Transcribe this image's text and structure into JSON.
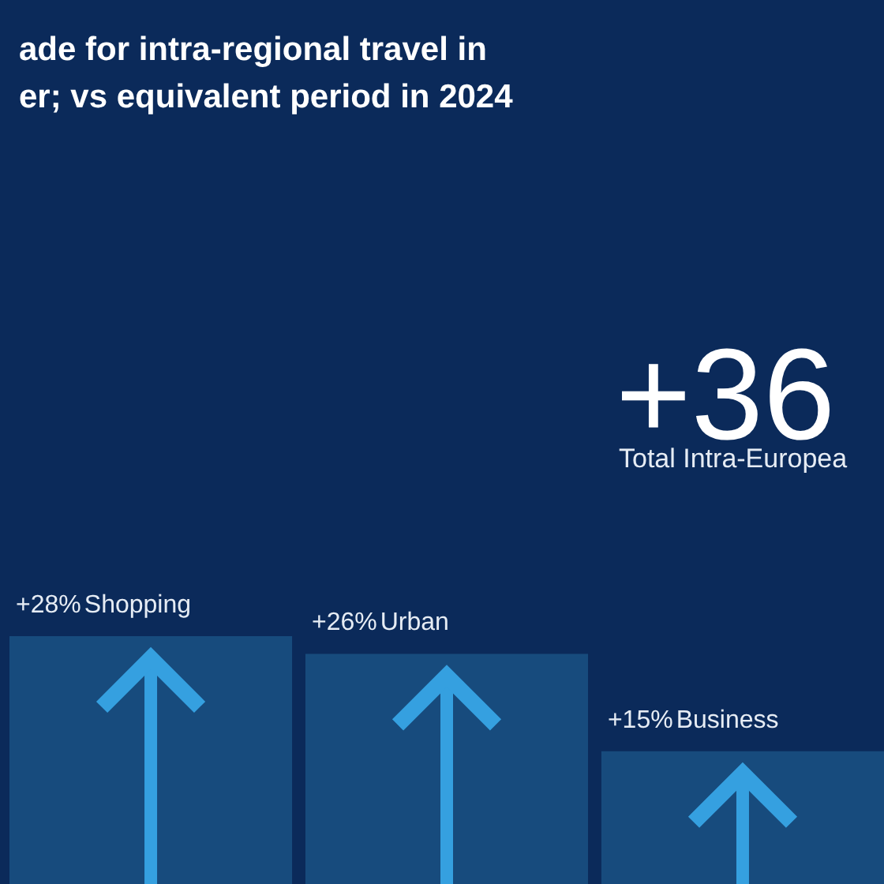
{
  "chart_data": {
    "type": "bar",
    "title": "ade for intra-regional travel in er; vs equivalent period in 2024",
    "annotations": [
      "+36",
      "Total Intra-Europea"
    ],
    "categories": [
      "Shopping",
      "Urban",
      "Business"
    ],
    "values": [
      28,
      26,
      15
    ],
    "value_labels": [
      "+28%",
      "+26%",
      "+15%"
    ],
    "color": "#174b7d"
  }
}
